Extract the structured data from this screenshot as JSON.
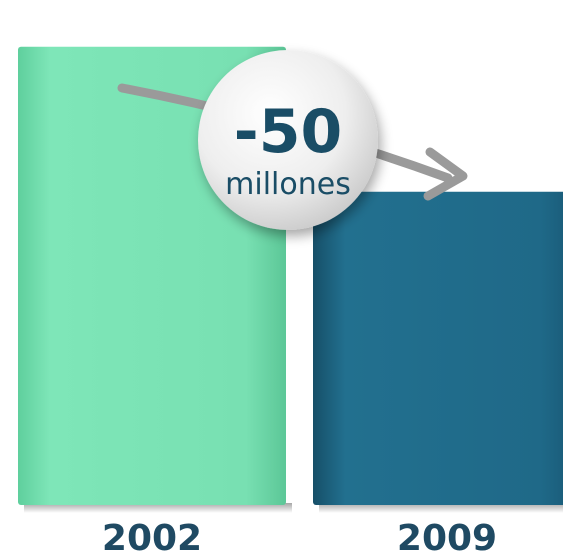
{
  "chart_data": {
    "type": "bar",
    "categories": [
      "2002",
      "2009"
    ],
    "values": [
      158,
      108
    ],
    "ylim": [
      0,
      170
    ],
    "colors": [
      "#78e0b2",
      "#1f6988"
    ],
    "annotation": {
      "value": "-50",
      "unit": "millones"
    },
    "grid": false,
    "legend": "none"
  }
}
